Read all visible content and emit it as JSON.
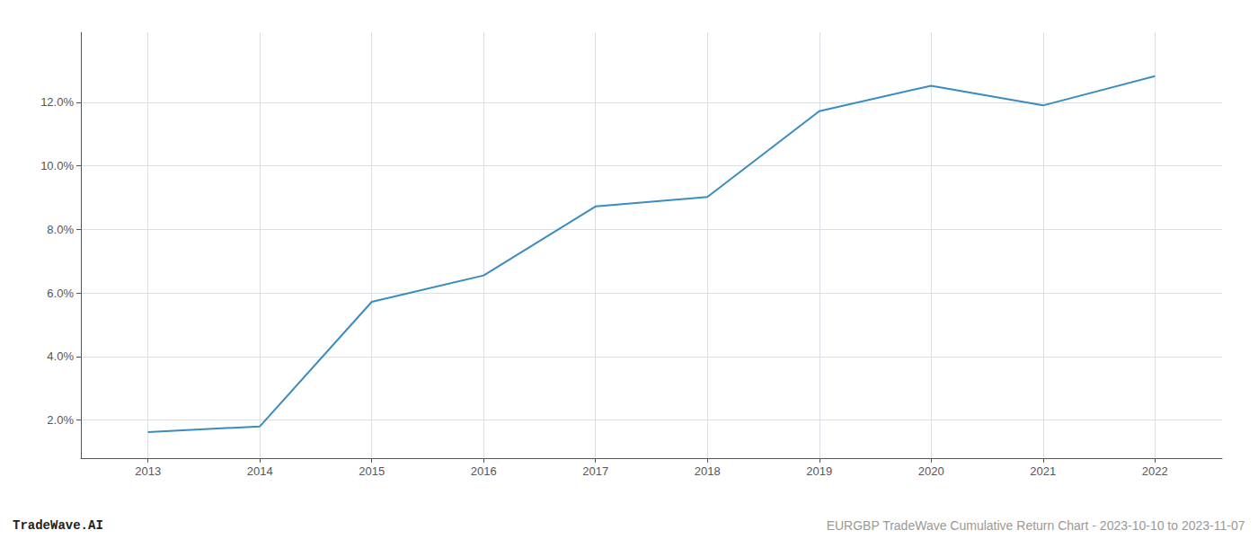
{
  "chart_data": {
    "type": "line",
    "x": [
      2013,
      2014,
      2015,
      2016,
      2017,
      2018,
      2019,
      2020,
      2021,
      2022
    ],
    "values": [
      1.62,
      1.8,
      5.72,
      6.55,
      8.72,
      9.02,
      11.72,
      12.52,
      11.9,
      12.82
    ],
    "color": "#3a8bbf",
    "xlim": [
      2012.4,
      2022.6
    ],
    "ylim": [
      0.8,
      14.2
    ],
    "xticks": [
      2013,
      2014,
      2015,
      2016,
      2017,
      2018,
      2019,
      2020,
      2021,
      2022
    ],
    "yticks": [
      {
        "value": 2.0,
        "label": "2.0%"
      },
      {
        "value": 4.0,
        "label": "4.0%"
      },
      {
        "value": 6.0,
        "label": "6.0%"
      },
      {
        "value": 8.0,
        "label": "8.0%"
      },
      {
        "value": 10.0,
        "label": "10.0%"
      },
      {
        "value": 12.0,
        "label": "12.0%"
      }
    ],
    "grid": true,
    "annotations": [
      "TradeWave.AI",
      "EURGBP TradeWave Cumulative Return Chart - 2023-10-10 to 2023-11-07"
    ]
  }
}
